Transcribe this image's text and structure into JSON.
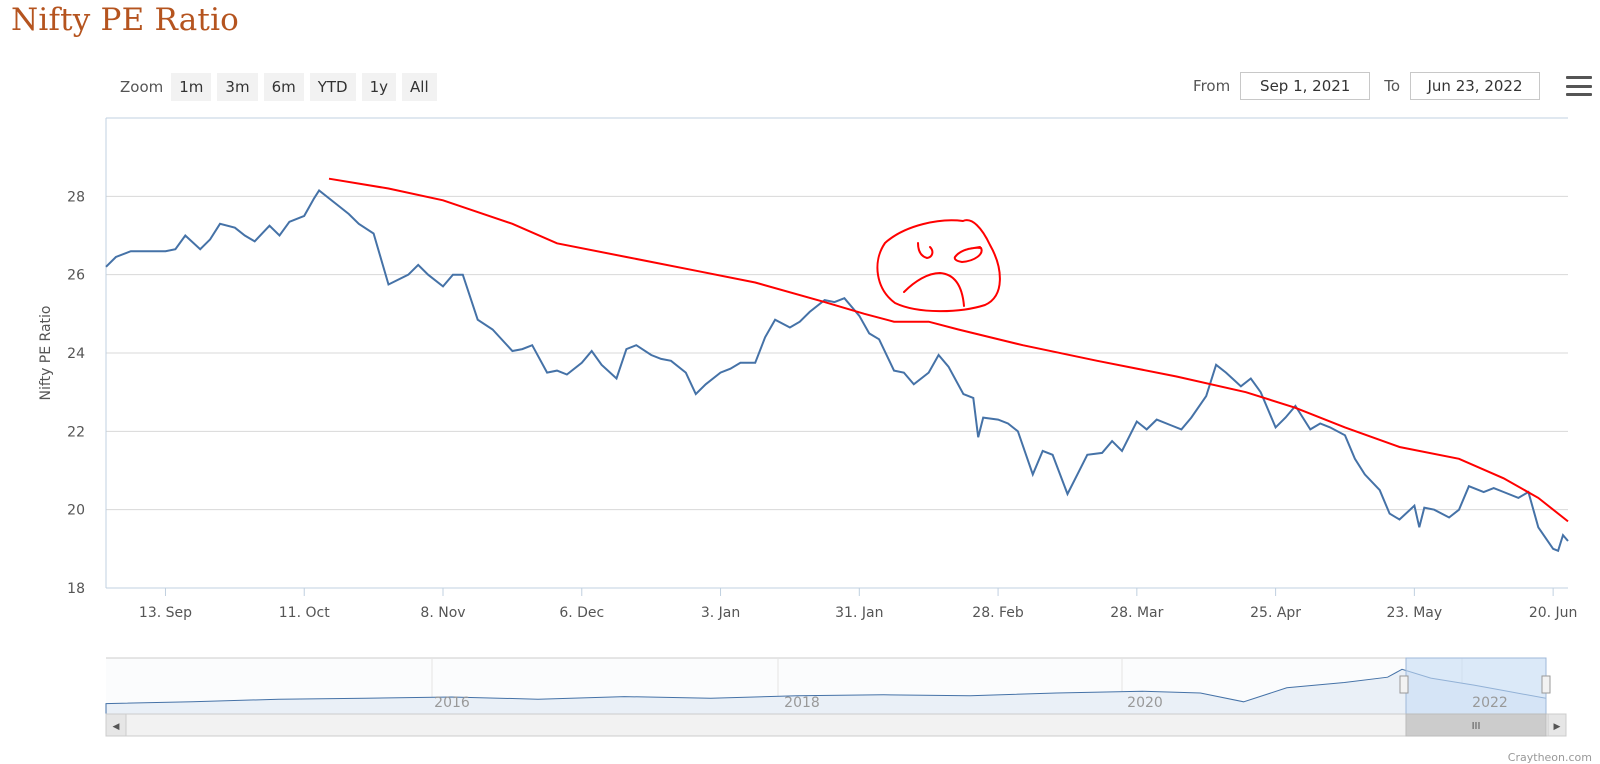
{
  "page": {
    "title": "Nifty PE Ratio"
  },
  "toolbar": {
    "zoom_label": "Zoom",
    "zoom_buttons": [
      "1m",
      "3m",
      "6m",
      "YTD",
      "1y",
      "All"
    ],
    "from_label": "From",
    "from_value": "Sep 1, 2021",
    "to_label": "To",
    "to_value": "Jun 23, 2022",
    "menu_icon": "hamburger-menu-icon"
  },
  "credits": "Craytheon.com",
  "colors": {
    "series": "#4572a7",
    "annotation": "#ff0000",
    "navigator_fill": "#c6dcf5"
  },
  "chart_data": {
    "type": "line",
    "title": "",
    "ylabel": "Nifty PE Ratio",
    "xlabel": "",
    "ylim": [
      18,
      30
    ],
    "y_ticks": [
      18,
      20,
      22,
      24,
      26,
      28
    ],
    "x_ticks": [
      {
        "date": "2021-09-13",
        "label": "13. Sep"
      },
      {
        "date": "2021-10-11",
        "label": "11. Oct"
      },
      {
        "date": "2021-11-08",
        "label": "8. Nov"
      },
      {
        "date": "2021-12-06",
        "label": "6. Dec"
      },
      {
        "date": "2022-01-03",
        "label": "3. Jan"
      },
      {
        "date": "2022-01-31",
        "label": "31. Jan"
      },
      {
        "date": "2022-02-28",
        "label": "28. Feb"
      },
      {
        "date": "2022-03-28",
        "label": "28. Mar"
      },
      {
        "date": "2022-04-25",
        "label": "25. Apr"
      },
      {
        "date": "2022-05-23",
        "label": "23. May"
      },
      {
        "date": "2022-06-20",
        "label": "20. Jun"
      }
    ],
    "grid": true,
    "legend": "none",
    "series": [
      {
        "values": [
          [
            "2021-09-01",
            26.2
          ],
          [
            "2021-09-03",
            26.45
          ],
          [
            "2021-09-06",
            26.6
          ],
          [
            "2021-09-08",
            26.6
          ],
          [
            "2021-09-10",
            26.6
          ],
          [
            "2021-09-13",
            26.6
          ],
          [
            "2021-09-15",
            26.65
          ],
          [
            "2021-09-17",
            27.0
          ],
          [
            "2021-09-20",
            26.65
          ],
          [
            "2021-09-22",
            26.9
          ],
          [
            "2021-09-24",
            27.3
          ],
          [
            "2021-09-27",
            27.2
          ],
          [
            "2021-09-29",
            27.0
          ],
          [
            "2021-10-01",
            26.85
          ],
          [
            "2021-10-04",
            27.25
          ],
          [
            "2021-10-06",
            27.0
          ],
          [
            "2021-10-08",
            27.35
          ],
          [
            "2021-10-11",
            27.5
          ],
          [
            "2021-10-13",
            27.95
          ],
          [
            "2021-10-14",
            28.15
          ],
          [
            "2021-10-18",
            27.75
          ],
          [
            "2021-10-20",
            27.55
          ],
          [
            "2021-10-22",
            27.3
          ],
          [
            "2021-10-25",
            27.05
          ],
          [
            "2021-10-28",
            25.75
          ],
          [
            "2021-11-01",
            26.0
          ],
          [
            "2021-11-03",
            26.25
          ],
          [
            "2021-11-05",
            26.0
          ],
          [
            "2021-11-08",
            25.7
          ],
          [
            "2021-11-10",
            26.0
          ],
          [
            "2021-11-12",
            26.0
          ],
          [
            "2021-11-15",
            24.85
          ],
          [
            "2021-11-18",
            24.6
          ],
          [
            "2021-11-22",
            24.05
          ],
          [
            "2021-11-24",
            24.1
          ],
          [
            "2021-11-26",
            24.2
          ],
          [
            "2021-11-29",
            23.5
          ],
          [
            "2021-12-01",
            23.55
          ],
          [
            "2021-12-03",
            23.45
          ],
          [
            "2021-12-06",
            23.75
          ],
          [
            "2021-12-08",
            24.05
          ],
          [
            "2021-12-10",
            23.7
          ],
          [
            "2021-12-13",
            23.35
          ],
          [
            "2021-12-15",
            24.1
          ],
          [
            "2021-12-17",
            24.2
          ],
          [
            "2021-12-20",
            23.95
          ],
          [
            "2021-12-22",
            23.85
          ],
          [
            "2021-12-24",
            23.8
          ],
          [
            "2021-12-27",
            23.5
          ],
          [
            "2021-12-29",
            22.95
          ],
          [
            "2021-12-31",
            23.2
          ],
          [
            "2022-01-03",
            23.5
          ],
          [
            "2022-01-05",
            23.6
          ],
          [
            "2022-01-07",
            23.75
          ],
          [
            "2022-01-10",
            23.75
          ],
          [
            "2022-01-12",
            24.4
          ],
          [
            "2022-01-14",
            24.85
          ],
          [
            "2022-01-17",
            24.65
          ],
          [
            "2022-01-19",
            24.8
          ],
          [
            "2022-01-21",
            25.05
          ],
          [
            "2022-01-24",
            25.35
          ],
          [
            "2022-01-26",
            25.3
          ],
          [
            "2022-01-28",
            25.4
          ],
          [
            "2022-01-31",
            24.95
          ],
          [
            "2022-02-02",
            24.5
          ],
          [
            "2022-02-04",
            24.35
          ],
          [
            "2022-02-07",
            23.55
          ],
          [
            "2022-02-09",
            23.5
          ],
          [
            "2022-02-11",
            23.2
          ],
          [
            "2022-02-14",
            23.5
          ],
          [
            "2022-02-16",
            23.95
          ],
          [
            "2022-02-18",
            23.65
          ],
          [
            "2022-02-21",
            22.95
          ],
          [
            "2022-02-23",
            22.85
          ],
          [
            "2022-02-24",
            21.85
          ],
          [
            "2022-02-25",
            22.35
          ],
          [
            "2022-02-28",
            22.3
          ],
          [
            "2022-03-02",
            22.2
          ],
          [
            "2022-03-04",
            22.0
          ],
          [
            "2022-03-07",
            20.9
          ],
          [
            "2022-03-09",
            21.5
          ],
          [
            "2022-03-11",
            21.4
          ],
          [
            "2022-03-14",
            20.4
          ],
          [
            "2022-03-16",
            20.9
          ],
          [
            "2022-03-18",
            21.4
          ],
          [
            "2022-03-21",
            21.45
          ],
          [
            "2022-03-23",
            21.75
          ],
          [
            "2022-03-25",
            21.5
          ],
          [
            "2022-03-28",
            22.25
          ],
          [
            "2022-03-30",
            22.05
          ],
          [
            "2022-04-01",
            22.3
          ],
          [
            "2022-04-04",
            22.15
          ],
          [
            "2022-04-06",
            22.05
          ],
          [
            "2022-04-08",
            22.35
          ],
          [
            "2022-04-11",
            22.9
          ],
          [
            "2022-04-13",
            23.7
          ],
          [
            "2022-04-15",
            23.5
          ],
          [
            "2022-04-18",
            23.15
          ],
          [
            "2022-04-20",
            23.35
          ],
          [
            "2022-04-22",
            23.0
          ],
          [
            "2022-04-25",
            22.1
          ],
          [
            "2022-04-27",
            22.35
          ],
          [
            "2022-04-29",
            22.65
          ],
          [
            "2022-05-02",
            22.05
          ],
          [
            "2022-05-04",
            22.2
          ],
          [
            "2022-05-06",
            22.1
          ],
          [
            "2022-05-09",
            21.9
          ],
          [
            "2022-05-11",
            21.3
          ],
          [
            "2022-05-13",
            20.9
          ],
          [
            "2022-05-16",
            20.5
          ],
          [
            "2022-05-18",
            19.9
          ],
          [
            "2022-05-20",
            19.75
          ],
          [
            "2022-05-23",
            20.1
          ],
          [
            "2022-05-24",
            19.55
          ],
          [
            "2022-05-25",
            20.05
          ],
          [
            "2022-05-27",
            20.0
          ],
          [
            "2022-05-30",
            19.8
          ],
          [
            "2022-06-01",
            20.0
          ],
          [
            "2022-06-03",
            20.6
          ],
          [
            "2022-06-06",
            20.45
          ],
          [
            "2022-06-08",
            20.55
          ],
          [
            "2022-06-10",
            20.45
          ],
          [
            "2022-06-13",
            20.3
          ],
          [
            "2022-06-15",
            20.45
          ],
          [
            "2022-06-17",
            19.55
          ],
          [
            "2022-06-20",
            19.0
          ],
          [
            "2022-06-21",
            18.95
          ],
          [
            "2022-06-22",
            19.35
          ],
          [
            "2022-06-23",
            19.2
          ]
        ]
      }
    ],
    "annotation_line": [
      [
        "2021-10-16",
        28.45
      ],
      [
        "2021-10-28",
        28.2
      ],
      [
        "2021-11-08",
        27.9
      ],
      [
        "2021-11-22",
        27.3
      ],
      [
        "2021-12-01",
        26.8
      ],
      [
        "2021-12-15",
        26.45
      ],
      [
        "2021-12-29",
        26.1
      ],
      [
        "2022-01-10",
        25.8
      ],
      [
        "2022-01-24",
        25.3
      ],
      [
        "2022-02-01",
        25.0
      ],
      [
        "2022-02-07",
        24.8
      ],
      [
        "2022-02-14",
        24.8
      ],
      [
        "2022-02-20",
        24.6
      ],
      [
        "2022-03-05",
        24.2
      ],
      [
        "2022-03-20",
        23.8
      ],
      [
        "2022-04-05",
        23.4
      ],
      [
        "2022-04-19",
        23.0
      ],
      [
        "2022-04-29",
        22.6
      ],
      [
        "2022-05-09",
        22.1
      ],
      [
        "2022-05-20",
        21.6
      ],
      [
        "2022-06-01",
        21.3
      ],
      [
        "2022-06-10",
        20.8
      ],
      [
        "2022-06-17",
        20.3
      ],
      [
        "2022-06-23",
        19.7
      ]
    ],
    "navigator": {
      "labels": [
        "2016",
        "2018",
        "2020",
        "2022"
      ]
    }
  }
}
